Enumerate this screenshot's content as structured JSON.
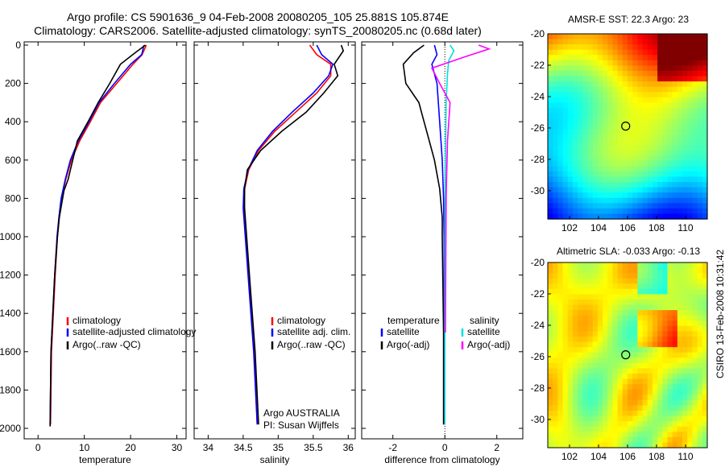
{
  "header": {
    "title_line1": "Argo profile: CS 5901636_9 04-Feb-2008 20080205_105 25.881S 105.874E",
    "title_line2": "Climatology: CARS2006. Satellite-adjusted climatology: synTS_20080205.nc (0.68d later)"
  },
  "maps": {
    "sst_title": "AMSR-E SST: 22.3 Argo: 23",
    "sla_title": "Altimetric SLA: -0.033 Argo: -0.13",
    "credit": "CSIRO 13-Feb-2008 10:31:42"
  },
  "chart_data": [
    {
      "type": "line",
      "name": "temperature-profile",
      "xlabel": "temperature",
      "ylabel": "",
      "xlim": [
        -3,
        32
      ],
      "ylim": [
        2050,
        0
      ],
      "xticks": [
        0,
        10,
        20,
        30
      ],
      "yticks": [
        0,
        200,
        400,
        600,
        800,
        1000,
        1200,
        1400,
        1600,
        1800,
        2000
      ],
      "legend": [
        "climatology",
        "satellite-adjusted climatology",
        "Argo(..raw -QC)"
      ],
      "series": [
        {
          "name": "climatology",
          "color": "#ff0000",
          "x": [
            23.4,
            22.5,
            20.5,
            17,
            13.5,
            11.3,
            9,
            7.2,
            6,
            5.1,
            4.6,
            4.2,
            3.7,
            3.3,
            2.9,
            2.7
          ],
          "y": [
            0,
            50,
            100,
            200,
            300,
            400,
            500,
            600,
            700,
            800,
            900,
            1000,
            1200,
            1400,
            1600,
            1980
          ]
        },
        {
          "name": "satellite-adjusted climatology",
          "color": "#0000ff",
          "x": [
            22.9,
            22.4,
            20,
            16.5,
            13.2,
            11,
            8.7,
            7,
            5.9,
            5,
            4.5,
            4.1,
            3.6,
            3.2,
            2.8,
            2.6
          ],
          "y": [
            0,
            50,
            100,
            200,
            300,
            400,
            500,
            600,
            700,
            800,
            900,
            1000,
            1200,
            1400,
            1600,
            1980
          ]
        },
        {
          "name": "Argo(..raw -QC)",
          "color": "#000000",
          "x": [
            23.2,
            21,
            17.8,
            15.5,
            13,
            10.8,
            8.5,
            7.5,
            6.5,
            5.6,
            4.6,
            4.2,
            3.6,
            3.2,
            2.8,
            2.6
          ],
          "y": [
            0,
            40,
            100,
            200,
            300,
            400,
            500,
            600,
            700,
            760,
            900,
            1000,
            1200,
            1400,
            1600,
            1990
          ]
        }
      ]
    },
    {
      "type": "line",
      "name": "salinity-profile",
      "xlabel": "salinity",
      "ylabel": "",
      "xlim": [
        33.8,
        36.1
      ],
      "ylim": [
        2050,
        0
      ],
      "xticks": [
        34,
        34.5,
        35,
        35.5,
        36
      ],
      "legend": [
        "climatology",
        "satellite adj. clim.",
        "Argo(..raw -QC)"
      ],
      "annotation": [
        "Argo AUSTRALIA",
        "PI: Susan Wijffels"
      ],
      "series": [
        {
          "name": "climatology",
          "color": "#ff0000",
          "x": [
            35.45,
            35.55,
            35.75,
            35.75,
            35.55,
            35.25,
            34.95,
            34.72,
            34.58,
            34.52,
            34.51,
            34.54,
            34.6,
            34.66,
            34.7
          ],
          "y": [
            0,
            50,
            100,
            160,
            250,
            350,
            450,
            550,
            650,
            750,
            850,
            1000,
            1300,
            1600,
            1980
          ]
        },
        {
          "name": "satellite adj. clim.",
          "color": "#0000ff",
          "x": [
            35.55,
            35.62,
            35.78,
            35.72,
            35.5,
            35.2,
            34.92,
            34.7,
            34.57,
            34.51,
            34.5,
            34.53,
            34.59,
            34.65,
            34.7
          ],
          "y": [
            0,
            50,
            100,
            160,
            250,
            350,
            450,
            550,
            650,
            750,
            850,
            1000,
            1300,
            1600,
            1980
          ]
        },
        {
          "name": "Argo(..raw -QC)",
          "color": "#000000",
          "x": [
            35.9,
            35.93,
            35.8,
            35.85,
            35.65,
            35.4,
            35.05,
            34.75,
            34.56,
            34.52,
            34.52,
            34.55,
            34.61,
            34.67,
            34.72
          ],
          "y": [
            0,
            30,
            100,
            160,
            250,
            350,
            450,
            550,
            650,
            750,
            850,
            1000,
            1300,
            1600,
            1980
          ]
        }
      ]
    },
    {
      "type": "line",
      "name": "difference-profile",
      "xlabel": "difference from climatology",
      "ylabel": "",
      "xlim": [
        -3.2,
        3.0
      ],
      "ylim": [
        2050,
        0
      ],
      "xticks": [
        -2,
        0,
        2
      ],
      "legend": [
        "temperature",
        "salinity",
        "satellite",
        "satellite",
        "Argo(-adj)",
        "Argo(-adj)"
      ],
      "series": [
        {
          "name": "temperature satellite",
          "color": "#0000ff",
          "x": [
            -0.4,
            -0.3,
            -0.5,
            -0.3,
            -0.2,
            -0.1,
            -0.05,
            -0.03,
            -0.02,
            -0.01
          ],
          "y": [
            0,
            50,
            100,
            200,
            400,
            600,
            800,
            1000,
            1500,
            1980
          ]
        },
        {
          "name": "temperature Argo(-adj)",
          "color": "#000000",
          "x": [
            -0.8,
            -1.2,
            -1.6,
            -1.5,
            -1.0,
            -0.8,
            -0.6,
            -0.4,
            -0.2,
            -0.1,
            -0.1,
            -0.05,
            -0.05
          ],
          "y": [
            0,
            40,
            100,
            200,
            300,
            400,
            500,
            600,
            750,
            900,
            1000,
            1500,
            1980
          ]
        },
        {
          "name": "salinity satellite",
          "color": "#00e0e0",
          "x": [
            0.2,
            0.35,
            0.15,
            0.1,
            0.05,
            0.03,
            0.01,
            0.0,
            0.0
          ],
          "y": [
            0,
            30,
            80,
            150,
            300,
            500,
            800,
            1200,
            1980
          ]
        },
        {
          "name": "salinity Argo(-adj)",
          "color": "#ff00ff",
          "x": [
            1.3,
            1.7,
            0.8,
            -0.5,
            -0.2,
            0.2,
            0.1,
            0.05,
            0.02
          ],
          "y": [
            0,
            20,
            60,
            120,
            200,
            300,
            500,
            800,
            1500
          ]
        }
      ]
    },
    {
      "type": "heatmap",
      "name": "sst-map",
      "title": "AMSR-E SST: 22.3 Argo: 23",
      "xlim": [
        100.5,
        111.5
      ],
      "ylim": [
        -31.8,
        -20
      ],
      "xticks": [
        102,
        104,
        106,
        108,
        110
      ],
      "yticks": [
        -20,
        -22,
        -24,
        -26,
        -28,
        -30
      ],
      "marker": [
        105.874,
        -25.881
      ]
    },
    {
      "type": "heatmap",
      "name": "sla-map",
      "title": "Altimetric SLA: -0.033 Argo: -0.13",
      "xlim": [
        100.5,
        111.5
      ],
      "ylim": [
        -31.8,
        -20
      ],
      "xticks": [
        102,
        104,
        106,
        108,
        110
      ],
      "yticks": [
        -20,
        -22,
        -24,
        -26,
        -28,
        -30
      ],
      "marker": [
        105.874,
        -25.881
      ]
    }
  ]
}
